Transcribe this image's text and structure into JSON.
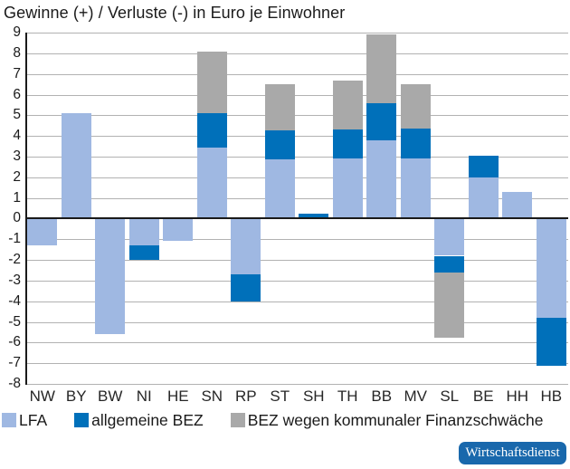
{
  "title": "Gewinne (+) / Verluste (-) in Euro je Einwohner",
  "legend": [
    {
      "label": "LFA",
      "color": "#9fb8e2"
    },
    {
      "label": "allgemeine BEZ",
      "color": "#0070ba"
    },
    {
      "label": "BEZ wegen kommunaler Finanzschwäche",
      "color": "#a9a9a9"
    }
  ],
  "badge": {
    "label": "Wirtschaftsdienst",
    "color": "#1968ac"
  },
  "chart_data": {
    "type": "bar",
    "stacked": true,
    "title": "Gewinne (+) / Verluste (-) in Euro je Einwohner",
    "categories": [
      "NW",
      "BY",
      "BW",
      "NI",
      "HE",
      "SN",
      "RP",
      "ST",
      "SH",
      "TH",
      "BB",
      "MV",
      "SL",
      "BE",
      "HH",
      "HB"
    ],
    "series": [
      {
        "name": "LFA",
        "color": "#9fb8e2",
        "values": [
          -1.3,
          5.1,
          -5.6,
          -1.3,
          -1.1,
          3.45,
          -2.7,
          2.85,
          0,
          2.9,
          3.8,
          2.9,
          -1.8,
          2.0,
          1.3,
          -4.8
        ]
      },
      {
        "name": "allgemeine BEZ",
        "color": "#0070ba",
        "values": [
          0,
          0,
          0,
          -0.7,
          0,
          1.65,
          -1.3,
          1.4,
          0.25,
          1.4,
          1.8,
          1.45,
          -0.8,
          1.05,
          0,
          -2.3
        ]
      },
      {
        "name": "BEZ wegen kommunaler Finanzschwäche",
        "color": "#a9a9a9",
        "values": [
          0,
          0,
          0,
          0,
          0,
          3.0,
          0,
          2.25,
          0,
          2.4,
          3.3,
          2.15,
          -3.15,
          0,
          0,
          0
        ]
      }
    ],
    "totals": [
      -1.3,
      5.1,
      -5.6,
      -2.0,
      -1.1,
      8.1,
      -4.0,
      6.5,
      0.25,
      6.7,
      8.9,
      6.5,
      -5.75,
      3.05,
      1.3,
      -7.1
    ],
    "ylim": [
      -8,
      9
    ],
    "ytick_step": 1,
    "grid": true,
    "legend_position": "bottom"
  }
}
